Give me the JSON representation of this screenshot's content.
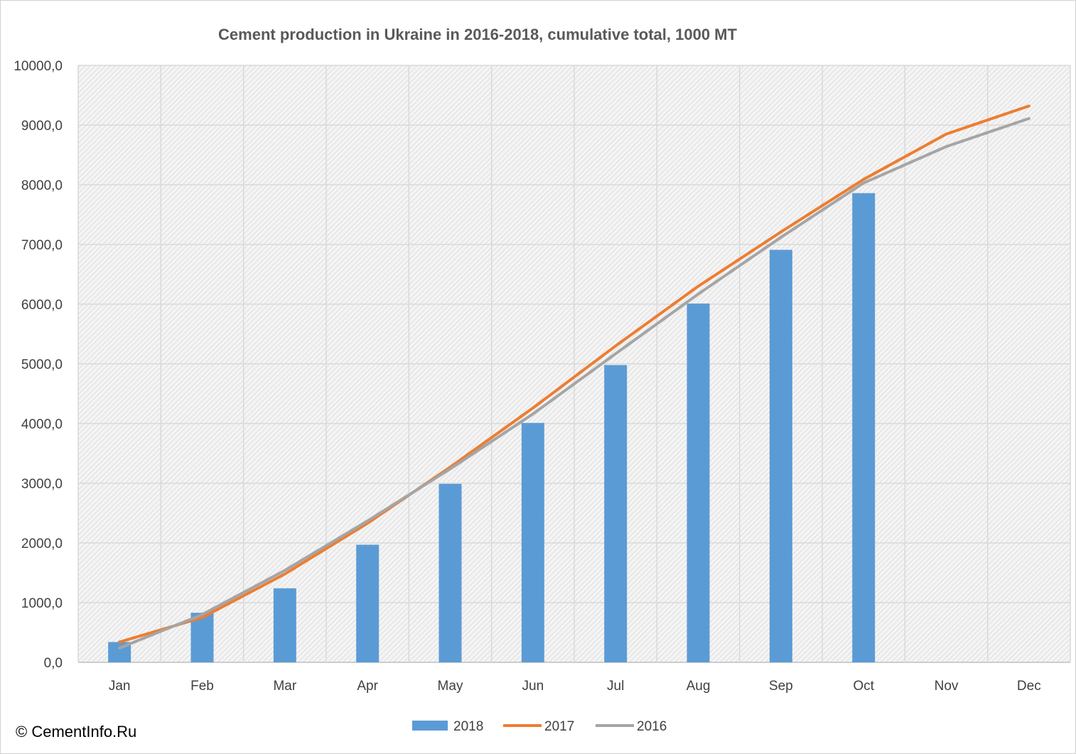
{
  "chart_data": {
    "type": "bar",
    "title": "Cement production in Ukraine in 2016-2018, cumulative total, 1000 MT",
    "categories": [
      "Jan",
      "Feb",
      "Mar",
      "Apr",
      "May",
      "Jun",
      "Jul",
      "Aug",
      "Sep",
      "Oct",
      "Nov",
      "Dec"
    ],
    "ylim": [
      0,
      10000
    ],
    "yticks": [
      "0,0",
      "1000,0",
      "2000,0",
      "3000,0",
      "4000,0",
      "5000,0",
      "6000,0",
      "7000,0",
      "8000,0",
      "9000,0",
      "10000,0"
    ],
    "grid": true,
    "legend_position": "bottom",
    "series": [
      {
        "name": "2018",
        "kind": "bar",
        "color": "#5b9bd5",
        "values": [
          340,
          830,
          1240,
          1970,
          2990,
          4010,
          4980,
          6010,
          6910,
          7860,
          null,
          null
        ]
      },
      {
        "name": "2017",
        "kind": "line",
        "color": "#ed7d31",
        "values": [
          340,
          750,
          1480,
          2330,
          3270,
          4260,
          5300,
          6300,
          7210,
          8090,
          8850,
          9320
        ]
      },
      {
        "name": "2016",
        "kind": "line",
        "color": "#a5a5a5",
        "values": [
          240,
          800,
          1540,
          2370,
          3240,
          4160,
          5170,
          6170,
          7120,
          8030,
          8640,
          9110
        ]
      }
    ]
  },
  "credit": "© CementInfo.Ru"
}
